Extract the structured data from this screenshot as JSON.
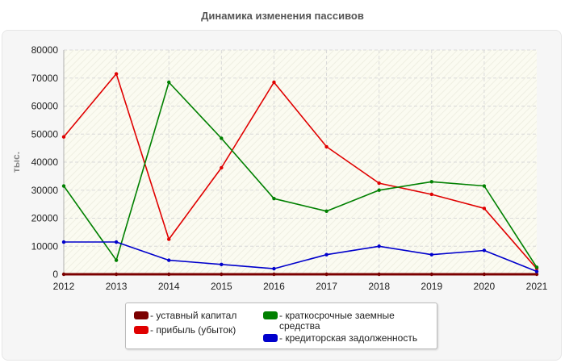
{
  "chart_data": {
    "type": "line",
    "title": "Динамика изменения пассивов",
    "ylabel": "тыс.",
    "xlabel": "",
    "x": [
      "2012",
      "2013",
      "2014",
      "2015",
      "2016",
      "2017",
      "2018",
      "2019",
      "2020",
      "2021"
    ],
    "ylim": [
      0,
      80000
    ],
    "yticks": [
      0,
      10000,
      20000,
      30000,
      40000,
      50000,
      60000,
      70000,
      80000
    ],
    "grid": true,
    "legend_position": "bottom",
    "series": [
      {
        "name": "уставный капитал",
        "color": "#7b0000",
        "values": [
          0,
          0,
          0,
          0,
          0,
          0,
          0,
          0,
          0,
          0
        ]
      },
      {
        "name": "прибыль (убыток)",
        "color": "#e00000",
        "values": [
          49000,
          71500,
          12500,
          38000,
          68500,
          45500,
          32500,
          28500,
          23500,
          2000
        ]
      },
      {
        "name": "краткосрочные заемные средства",
        "color": "#008000",
        "values": [
          31500,
          5000,
          68500,
          48500,
          27000,
          22500,
          30000,
          33000,
          31500,
          2500
        ]
      },
      {
        "name": "кредиторская задолженность",
        "color": "#0000cc",
        "values": [
          11500,
          11500,
          5000,
          3500,
          2000,
          7000,
          10000,
          7000,
          8500,
          1000
        ]
      }
    ]
  }
}
